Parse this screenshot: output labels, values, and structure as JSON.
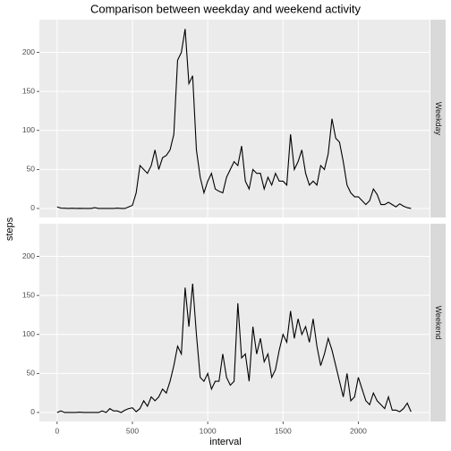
{
  "chart_data": {
    "type": "line",
    "title": "Comparison between weekday and weekend activity",
    "x_label": "interval",
    "y_label": "steps",
    "facet": "rows",
    "grid": true,
    "xlim": [
      -117.75,
      2472.75
    ],
    "xticks": [
      0,
      500,
      1000,
      1500,
      2000
    ],
    "ylim": [
      -11.5,
      241.9
    ],
    "yticks": [
      0,
      50,
      100,
      150,
      200
    ],
    "x": [
      0,
      25,
      50,
      75,
      100,
      125,
      150,
      175,
      200,
      225,
      250,
      275,
      300,
      325,
      350,
      375,
      400,
      425,
      450,
      475,
      500,
      525,
      550,
      575,
      600,
      625,
      650,
      675,
      700,
      725,
      750,
      775,
      800,
      825,
      850,
      875,
      900,
      925,
      950,
      975,
      1000,
      1025,
      1050,
      1075,
      1100,
      1125,
      1150,
      1175,
      1200,
      1225,
      1250,
      1275,
      1300,
      1325,
      1350,
      1375,
      1400,
      1425,
      1450,
      1475,
      1500,
      1525,
      1550,
      1575,
      1600,
      1625,
      1650,
      1675,
      1700,
      1725,
      1750,
      1775,
      1800,
      1825,
      1850,
      1875,
      1900,
      1925,
      1950,
      1975,
      2000,
      2025,
      2050,
      2075,
      2100,
      2125,
      2150,
      2175,
      2200,
      2225,
      2250,
      2275,
      2300,
      2325,
      2350
    ],
    "series": [
      {
        "name": "Weekday",
        "color": "#000000",
        "values": [
          2,
          0.5,
          0.3,
          0,
          0.3,
          0,
          0.2,
          0,
          0,
          0,
          1,
          0,
          0,
          0,
          0,
          0,
          0.5,
          0,
          0,
          2,
          4,
          20,
          55,
          50,
          45,
          55,
          75,
          50,
          65,
          68,
          75,
          95,
          190,
          200,
          230,
          160,
          170,
          75,
          40,
          20,
          35,
          45,
          25,
          22,
          20,
          40,
          50,
          60,
          55,
          80,
          35,
          25,
          50,
          45,
          45,
          25,
          40,
          30,
          45,
          35,
          35,
          30,
          95,
          50,
          60,
          75,
          45,
          30,
          35,
          30,
          55,
          50,
          70,
          115,
          90,
          85,
          60,
          30,
          20,
          15,
          15,
          10,
          5,
          10,
          25,
          18,
          5,
          5,
          8,
          5,
          2,
          6,
          3,
          1,
          0
        ]
      },
      {
        "name": "Weekend",
        "color": "#000000",
        "values": [
          0,
          2,
          0,
          0,
          0,
          0,
          0.5,
          0,
          0,
          0,
          0,
          0,
          2,
          0,
          5,
          2,
          2,
          0,
          3,
          5,
          6,
          1,
          5,
          15,
          8,
          20,
          15,
          20,
          30,
          25,
          40,
          60,
          85,
          75,
          160,
          110,
          165,
          100,
          45,
          40,
          50,
          30,
          40,
          40,
          75,
          45,
          35,
          40,
          140,
          70,
          75,
          40,
          110,
          75,
          95,
          65,
          75,
          45,
          55,
          80,
          100,
          90,
          130,
          95,
          120,
          100,
          110,
          90,
          120,
          85,
          60,
          75,
          95,
          80,
          60,
          40,
          20,
          50,
          15,
          20,
          45,
          30,
          15,
          10,
          25,
          15,
          10,
          5,
          20,
          3,
          3,
          1,
          5,
          12,
          1
        ]
      }
    ]
  }
}
